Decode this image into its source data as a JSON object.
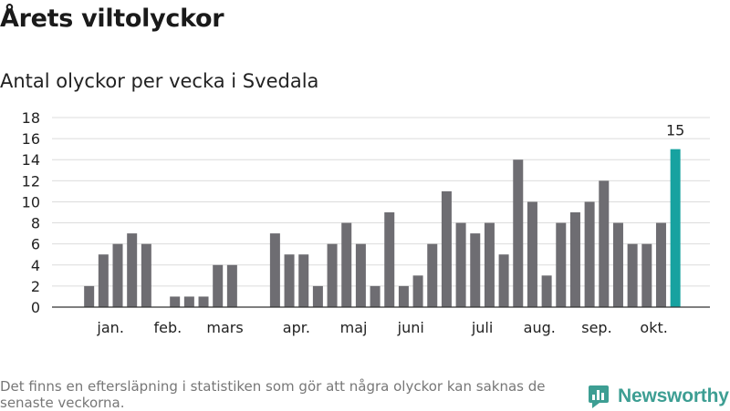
{
  "title": "Årets viltolyckor",
  "subtitle": "Antal olyckor per vecka i Svedala",
  "footnote": "Det finns en eftersläpning i statistiken som gör att några olyckor kan saknas de senaste veckorna.",
  "brand": {
    "name": "Newsworthy",
    "icon": "newsworthy-logo-icon",
    "color": "#3d9e93"
  },
  "chart_data": {
    "type": "bar",
    "title": "Antal olyckor per vecka i Svedala",
    "xlabel": "",
    "ylabel": "",
    "ylim": [
      0,
      18
    ],
    "yticks": [
      0,
      2,
      4,
      6,
      8,
      10,
      12,
      14,
      16,
      18
    ],
    "grid": true,
    "weeks": [
      1,
      2,
      3,
      4,
      5,
      6,
      7,
      8,
      9,
      10,
      11,
      12,
      13,
      14,
      15,
      16,
      17,
      18,
      19,
      20,
      21,
      22,
      23,
      24,
      25,
      26,
      27,
      28,
      29,
      30,
      31,
      32,
      33,
      34,
      35,
      36,
      37,
      38,
      39,
      40,
      41,
      42,
      43,
      44
    ],
    "values": [
      null,
      2,
      5,
      6,
      7,
      6,
      null,
      1,
      1,
      1,
      4,
      4,
      null,
      null,
      7,
      5,
      5,
      2,
      6,
      8,
      6,
      2,
      9,
      2,
      3,
      6,
      11,
      8,
      7,
      8,
      5,
      14,
      10,
      3,
      8,
      9,
      10,
      12,
      8,
      6,
      6,
      8,
      15,
      null
    ],
    "month_labels": [
      {
        "label": "jan.",
        "week": 3.5
      },
      {
        "label": "feb.",
        "week": 7.5
      },
      {
        "label": "mars",
        "week": 11.5
      },
      {
        "label": "apr.",
        "week": 16.5
      },
      {
        "label": "maj",
        "week": 20.5
      },
      {
        "label": "juni",
        "week": 24.5
      },
      {
        "label": "juli",
        "week": 29.5
      },
      {
        "label": "aug.",
        "week": 33.5
      },
      {
        "label": "sep.",
        "week": 37.5
      },
      {
        "label": "okt.",
        "week": 41.5
      }
    ],
    "highlight": {
      "week": 43,
      "label": "15"
    },
    "bar_color": "#6e6d72",
    "highlight_color": "#17a2a0"
  }
}
